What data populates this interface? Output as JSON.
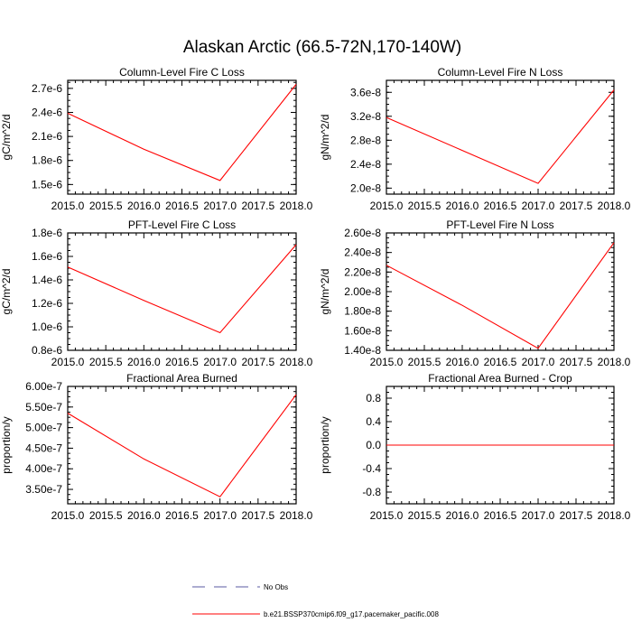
{
  "figure_title": "Alaskan Arctic (66.5-72N,170-140W)",
  "legend": {
    "entries": [
      {
        "label": "No Obs",
        "style": "dashed",
        "color": "#5a5aa0"
      },
      {
        "label": "b.e21.BSSP370cmip6.f09_g17.pacemaker_pacific.008",
        "style": "solid",
        "color": "#ff0000"
      }
    ],
    "placement": "bottom-center"
  },
  "chart_data": [
    {
      "type": "line",
      "title": "Column-Level Fire C Loss",
      "ylabel": "gC/m^2/d",
      "xlim": [
        2015.0,
        2018.0
      ],
      "ylim": [
        1.38e-06,
        2.8e-06
      ],
      "xticks": [
        "2015.0",
        "2015.5",
        "2016.0",
        "2016.5",
        "2017.0",
        "2017.5",
        "2018.0"
      ],
      "yticks": [
        {
          "v": 1.5e-06,
          "label": "1.5e-6"
        },
        {
          "v": 1.8e-06,
          "label": "1.8e-6"
        },
        {
          "v": 2.1e-06,
          "label": "2.1e-6"
        },
        {
          "v": 2.4e-06,
          "label": "2.4e-6"
        },
        {
          "v": 2.7e-06,
          "label": "2.7e-6"
        }
      ],
      "series": [
        {
          "x": [
            2015,
            2016,
            2017,
            2018
          ],
          "y": [
            2.39e-06,
            1.94e-06,
            1.55e-06,
            2.75e-06
          ],
          "color": "#ff0000"
        }
      ]
    },
    {
      "type": "line",
      "title": "Column-Level Fire N Loss",
      "ylabel": "gN/m^2/d",
      "xlim": [
        2015.0,
        2018.0
      ],
      "ylim": [
        1.9e-08,
        3.8e-08
      ],
      "xticks": [
        "2015.0",
        "2015.5",
        "2016.0",
        "2016.5",
        "2017.0",
        "2017.5",
        "2018.0"
      ],
      "yticks": [
        {
          "v": 2e-08,
          "label": "2.0e-8"
        },
        {
          "v": 2.4e-08,
          "label": "2.4e-8"
        },
        {
          "v": 2.8e-08,
          "label": "2.8e-8"
        },
        {
          "v": 3.2e-08,
          "label": "3.2e-8"
        },
        {
          "v": 3.6e-08,
          "label": "3.6e-8"
        }
      ],
      "series": [
        {
          "x": [
            2015,
            2016,
            2017,
            2018
          ],
          "y": [
            3.18e-08,
            2.63e-08,
            2.08e-08,
            3.64e-08
          ],
          "color": "#ff0000"
        }
      ]
    },
    {
      "type": "line",
      "title": "PFT-Level Fire C Loss",
      "ylabel": "gC/m^2/d",
      "xlim": [
        2015.0,
        2018.0
      ],
      "ylim": [
        8e-07,
        1.8e-06
      ],
      "xticks": [
        "2015.0",
        "2015.5",
        "2016.0",
        "2016.5",
        "2017.0",
        "2017.5",
        "2018.0"
      ],
      "yticks": [
        {
          "v": 8e-07,
          "label": "0.8e-6"
        },
        {
          "v": 1e-06,
          "label": "1.0e-6"
        },
        {
          "v": 1.2e-06,
          "label": "1.2e-6"
        },
        {
          "v": 1.4e-06,
          "label": "1.4e-6"
        },
        {
          "v": 1.6e-06,
          "label": "1.6e-6"
        },
        {
          "v": 1.8e-06,
          "label": "1.8e-6"
        }
      ],
      "series": [
        {
          "x": [
            2015,
            2016,
            2017,
            2018
          ],
          "y": [
            1.51e-06,
            1.225e-06,
            9.5e-07,
            1.7e-06
          ],
          "color": "#ff0000"
        }
      ]
    },
    {
      "type": "line",
      "title": "PFT-Level Fire N Loss",
      "ylabel": "gN/m^2/d",
      "xlim": [
        2015.0,
        2018.0
      ],
      "ylim": [
        1.4e-08,
        2.6e-08
      ],
      "xticks": [
        "2015.0",
        "2015.5",
        "2016.0",
        "2016.5",
        "2017.0",
        "2017.5",
        "2018.0"
      ],
      "yticks": [
        {
          "v": 1.4e-08,
          "label": "1.40e-8"
        },
        {
          "v": 1.6e-08,
          "label": "1.60e-8"
        },
        {
          "v": 1.8e-08,
          "label": "1.80e-8"
        },
        {
          "v": 2e-08,
          "label": "2.00e-8"
        },
        {
          "v": 2.2e-08,
          "label": "2.20e-8"
        },
        {
          "v": 2.4e-08,
          "label": "2.40e-8"
        },
        {
          "v": 2.6e-08,
          "label": "2.60e-8"
        }
      ],
      "series": [
        {
          "x": [
            2015,
            2016,
            2017,
            2018
          ],
          "y": [
            2.27e-08,
            1.86e-08,
            1.42e-08,
            2.5e-08
          ],
          "color": "#ff0000"
        }
      ]
    },
    {
      "type": "line",
      "title": "Fractional Area Burned",
      "ylabel": "proportion/y",
      "xlim": [
        2015.0,
        2018.0
      ],
      "ylim": [
        3.15e-07,
        6e-07
      ],
      "xticks": [
        "2015.0",
        "2015.5",
        "2016.0",
        "2016.5",
        "2017.0",
        "2017.5",
        "2018.0"
      ],
      "yticks": [
        {
          "v": 3.5e-07,
          "label": "3.50e-7"
        },
        {
          "v": 4e-07,
          "label": "4.00e-7"
        },
        {
          "v": 4.5e-07,
          "label": "4.50e-7"
        },
        {
          "v": 5e-07,
          "label": "5.00e-7"
        },
        {
          "v": 5.5e-07,
          "label": "5.50e-7"
        },
        {
          "v": 6e-07,
          "label": "6.00e-7"
        }
      ],
      "series": [
        {
          "x": [
            2015,
            2016,
            2017,
            2018
          ],
          "y": [
            5.35e-07,
            4.24e-07,
            3.32e-07,
            5.8e-07
          ],
          "color": "#ff0000"
        }
      ]
    },
    {
      "type": "line",
      "title": "Fractional Area Burned - Crop",
      "ylabel": "proportion/y",
      "xlim": [
        2015.0,
        2018.0
      ],
      "ylim": [
        -1.0,
        1.0
      ],
      "xticks": [
        "2015.0",
        "2015.5",
        "2016.0",
        "2016.5",
        "2017.0",
        "2017.5",
        "2018.0"
      ],
      "yticks": [
        {
          "v": -0.8,
          "label": "-0.8"
        },
        {
          "v": -0.4,
          "label": "-0.4"
        },
        {
          "v": 0.0,
          "label": "0.0"
        },
        {
          "v": 0.4,
          "label": "0.4"
        },
        {
          "v": 0.8,
          "label": "0.8"
        }
      ],
      "series": [
        {
          "x": [
            2015,
            2016,
            2017,
            2018
          ],
          "y": [
            0,
            0,
            0,
            0
          ],
          "color": "#ff0000"
        }
      ]
    }
  ]
}
